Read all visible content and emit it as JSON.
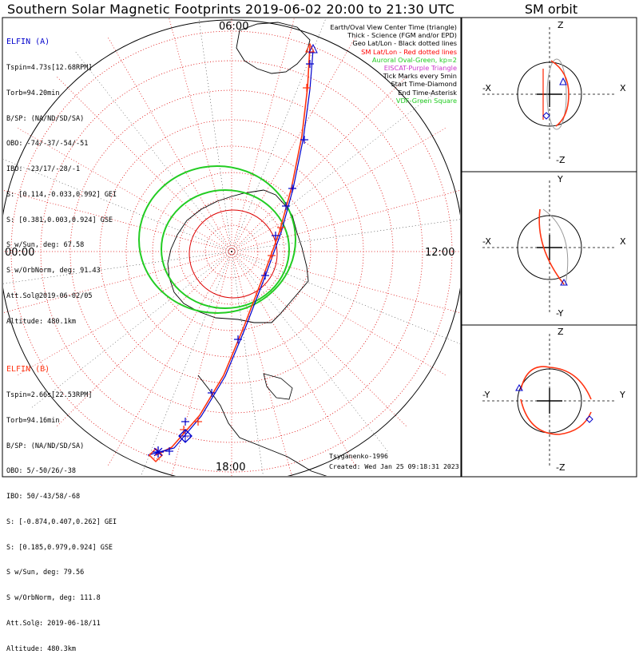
{
  "title": "Southern Solar Magnetic Footprints 2019-06-02 20:00 to 21:30 UTC",
  "orbit_title": "SM orbit",
  "colors": {
    "elfin_a": "#0000cc",
    "elfin_b": "#ff3311",
    "grid": "#dd0000",
    "geo": "#000000",
    "oval": "#22cc22",
    "eiscat": "#cc33cc",
    "vdf": "#22cc22",
    "orbit_gray": "#999999"
  },
  "elfin_a": {
    "name": "ELFIN (A)",
    "lines": [
      "Tspin=4.73s[12.68RPM]",
      "Torb=94.20min",
      "B/SP: (NA/ND/SD/SA)",
      "OBO: -74/-37/-54/-51",
      "IBO: -23/17/-28/-1",
      "S: [0.114,-0.033,0.992] GEI",
      "S: [0.381,0.003,0.924] GSE",
      "S w/Sun, deg: 67.58",
      "S w/OrbNorm, deg: 91.43",
      "Att.Sol@2019-06-02/05",
      "Altitude: 480.1km"
    ]
  },
  "elfin_b": {
    "name": "ELFIN (B)",
    "lines": [
      "Tspin=2.66s[22.53RPM]",
      "Torb=94.16min",
      "B/SP: (NA/ND/SD/SA)",
      "OBO: 5/-50/26/-38",
      "IBO: 50/-43/58/-68",
      "S: [-0.874,0.407,0.262] GEI",
      "S: [0.185,0.979,0.924] GSE",
      "S w/Sun, deg: 79.56",
      "S w/OrbNorm, deg: 111.8",
      "Att.Sol@: 2019-06-18/11",
      "Altitude: 480.3km"
    ]
  },
  "legend": [
    {
      "text": "Earth/Oval View Center Time (triangle)",
      "color": "#000000"
    },
    {
      "text": "Thick - Science (FGM and/or EPD)",
      "color": "#000000"
    },
    {
      "text": "Geo Lat/Lon - Black dotted lines",
      "color": "#000000"
    },
    {
      "text": "SM Lat/Lon - Red dotted lines",
      "color": "#ff0000"
    },
    {
      "text": "Auroral Oval-Green, kp=2",
      "color": "#22cc22"
    },
    {
      "text": "EISCAT-Purple Triangle",
      "color": "#cc33cc"
    },
    {
      "text": "Tick Marks every 5min",
      "color": "#000000"
    },
    {
      "text": "Start Time-Diamond",
      "color": "#000000"
    },
    {
      "text": "End Time-Asterisk",
      "color": "#000000"
    },
    {
      "text": "VDF-Green Square",
      "color": "#22cc22"
    }
  ],
  "time_labels": {
    "top": "06:00",
    "left": "00:00",
    "right": "12:00",
    "bottom": "18:00"
  },
  "model": "Tsyganenko-1996",
  "created": "Created: Wed Jan 25 09:18:31 2023",
  "orbit_panels": [
    {
      "top": "Z",
      "bottom": "-Z",
      "left": "-X",
      "right": "X"
    },
    {
      "top": "Y",
      "bottom": "-Y",
      "left": "-X",
      "right": "X"
    },
    {
      "top": "Z",
      "bottom": "-Z",
      "left": "-Y",
      "right": "Y"
    }
  ],
  "chart_data": {
    "type": "scatter",
    "projection": "southern polar, SM magnetic local time",
    "sm_lat_circles_deg": [
      -80,
      -70,
      -60,
      -50,
      -40,
      -30,
      -20,
      -10
    ],
    "mlt_labels": [
      "00:00",
      "06:00",
      "12:00",
      "18:00"
    ],
    "auroral_oval_kp": 2,
    "tick_interval_min": 5,
    "tracks": [
      {
        "name": "ELFIN (A)",
        "marker_start": "diamond",
        "marker_end": "asterisk",
        "center_marker": "triangle"
      },
      {
        "name": "ELFIN (B)",
        "marker_start": "diamond",
        "marker_end": "asterisk",
        "center_marker": "triangle"
      }
    ]
  }
}
